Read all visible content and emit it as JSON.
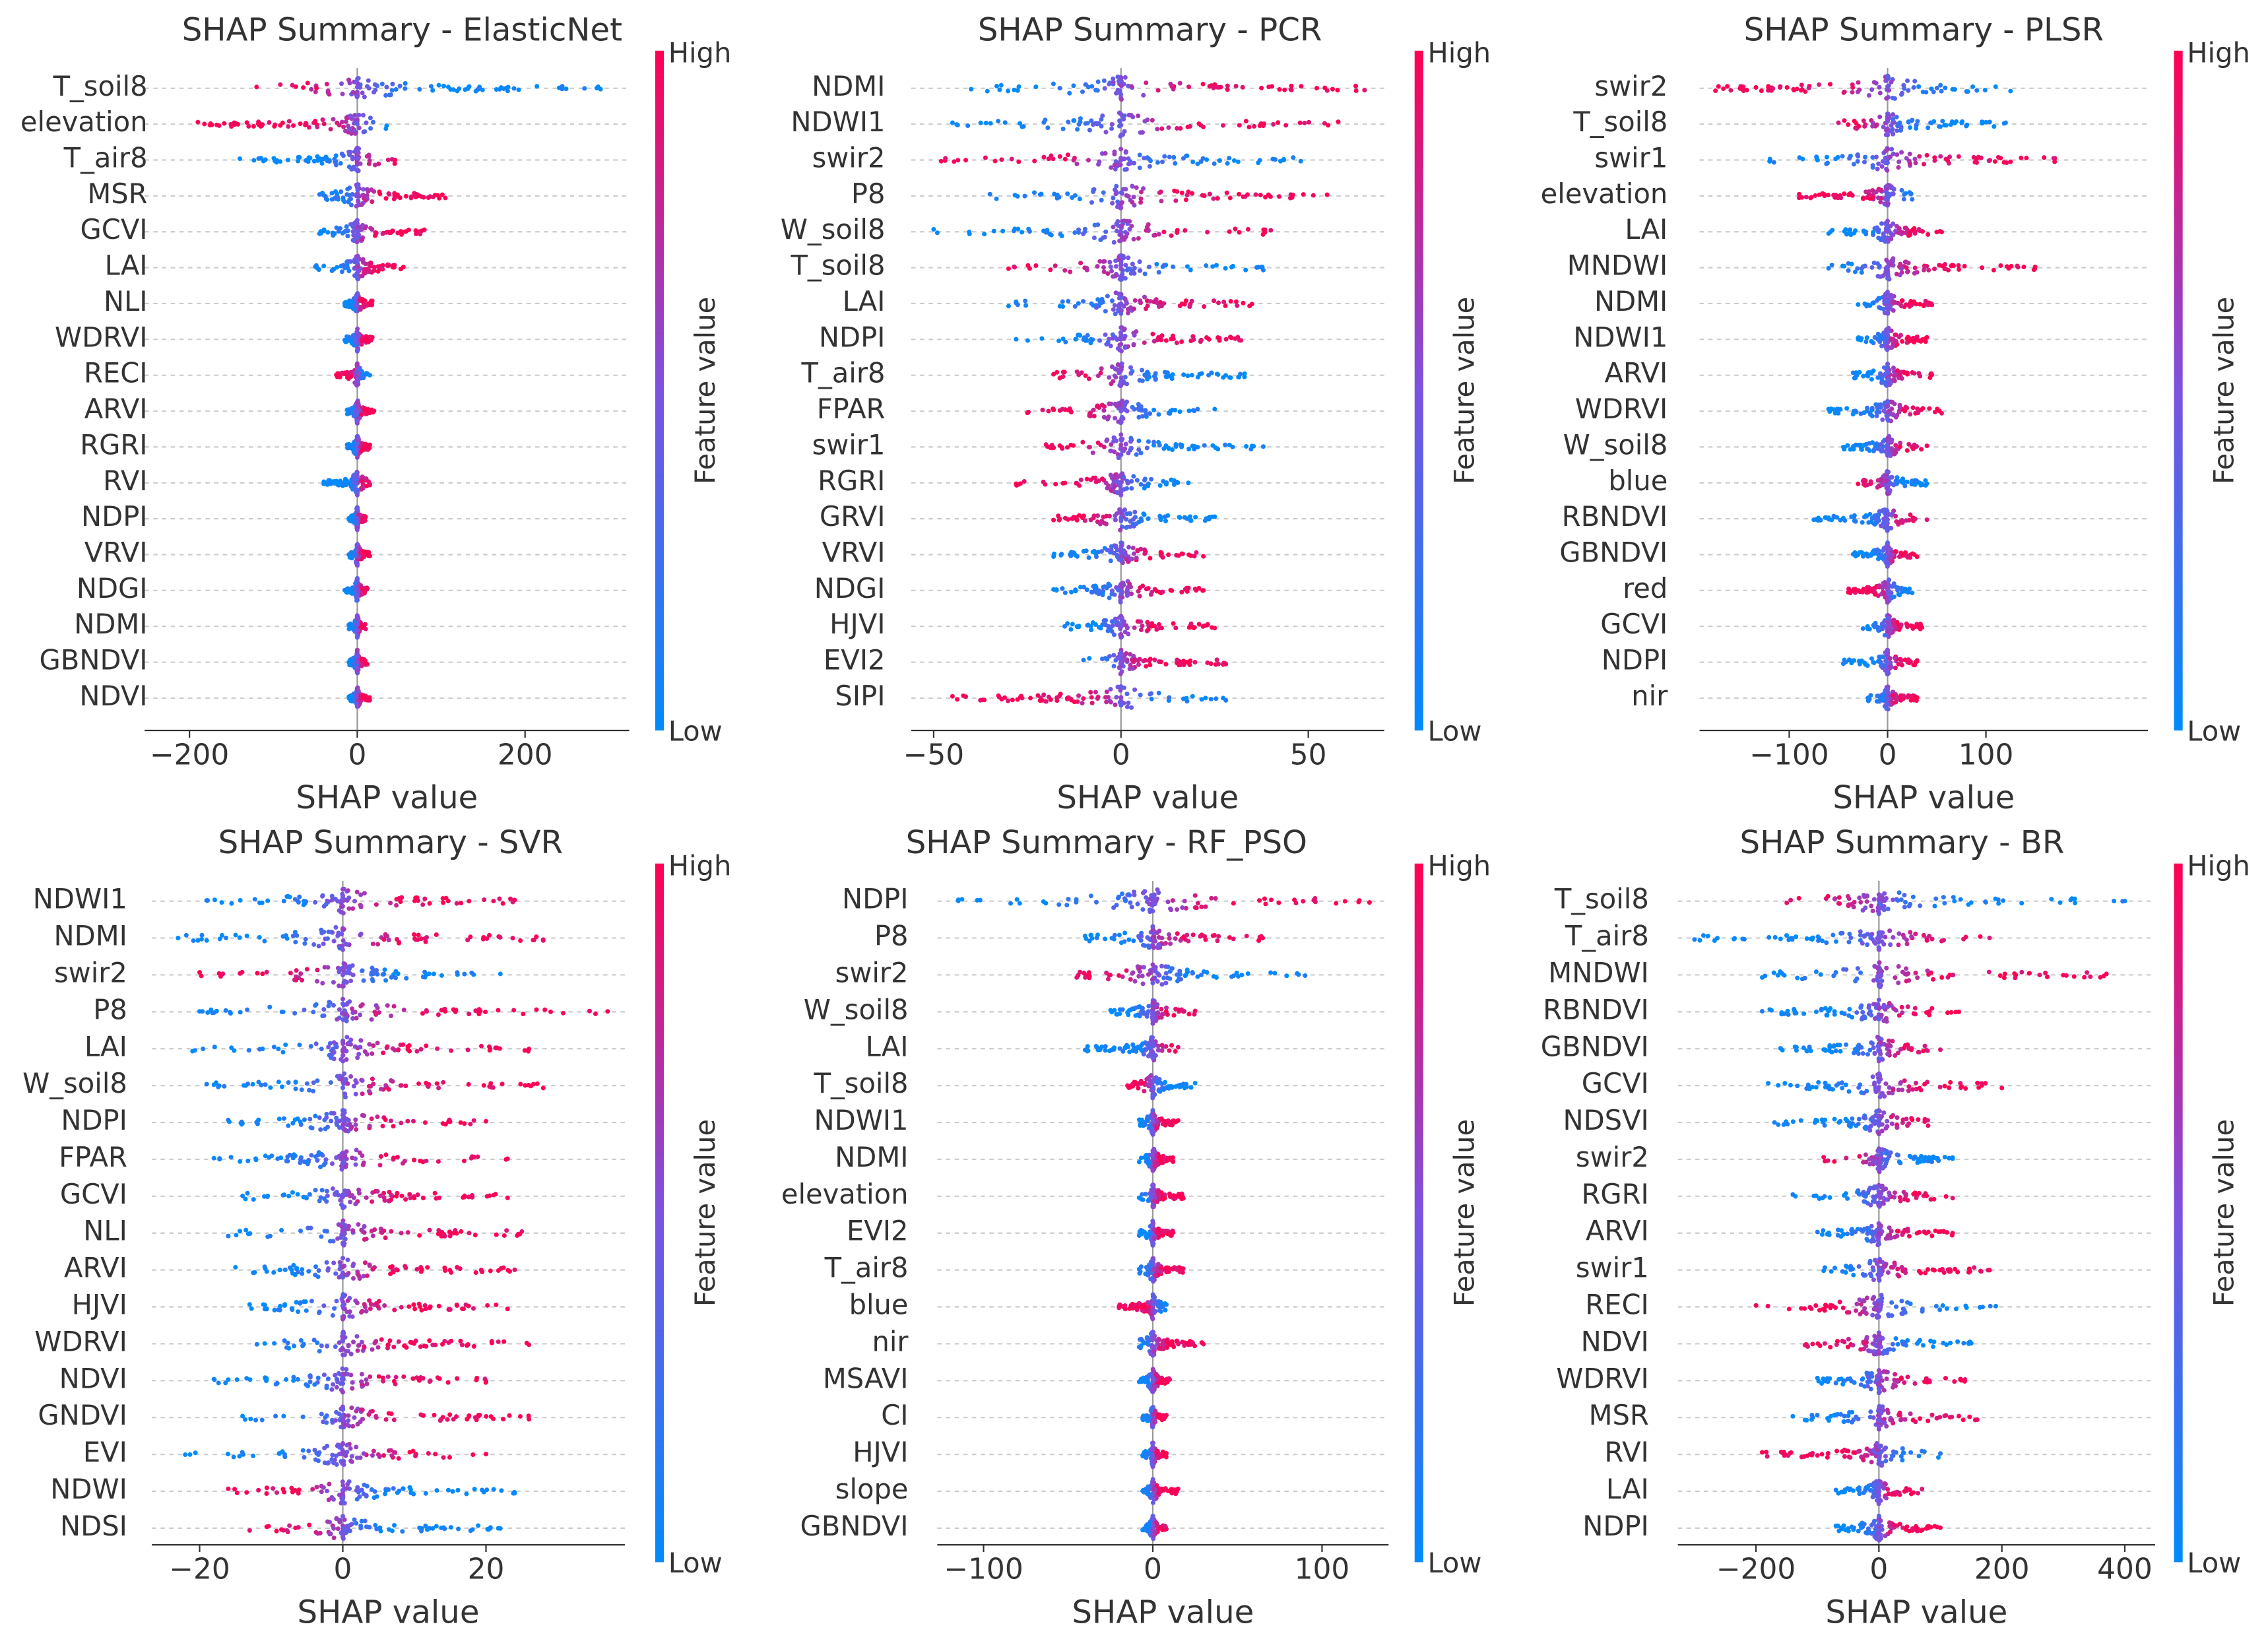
{
  "chart_data": [
    {
      "type": "scatter",
      "title": "SHAP Summary - ElasticNet",
      "xlabel": "SHAP value",
      "xticks": [
        -200,
        0,
        200
      ],
      "xlim": [
        -255,
        320
      ],
      "features": [
        [
          "T_soil8",
          -120,
          290,
          -1
        ],
        [
          "elevation",
          -190,
          35,
          -1
        ],
        [
          "T_air8",
          -140,
          45,
          1
        ],
        [
          "MSR",
          -45,
          105,
          1
        ],
        [
          "GCVI",
          -45,
          80,
          1
        ],
        [
          "LAI",
          -50,
          55,
          1
        ],
        [
          "NLI",
          -15,
          18,
          1
        ],
        [
          "WDRVI",
          -15,
          18,
          1
        ],
        [
          "RECI",
          -25,
          15,
          -1
        ],
        [
          "ARVI",
          -12,
          20,
          1
        ],
        [
          "RGRI",
          -12,
          15,
          1
        ],
        [
          "RVI",
          -40,
          15,
          1
        ],
        [
          "NDPI",
          -10,
          10,
          1
        ],
        [
          "VRVI",
          -10,
          15,
          1
        ],
        [
          "NDGI",
          -15,
          12,
          1
        ],
        [
          "NDMI",
          -10,
          10,
          1
        ],
        [
          "GBNDVI",
          -10,
          12,
          1
        ],
        [
          "NDVI",
          -10,
          15,
          1
        ]
      ]
    },
    {
      "type": "scatter",
      "title": "SHAP Summary - PCR",
      "xlabel": "SHAP value",
      "xticks": [
        -50,
        0,
        50
      ],
      "xlim": [
        -56,
        70
      ],
      "features": [
        [
          "NDMI",
          -40,
          65,
          1
        ],
        [
          "NDWI1",
          -45,
          58,
          1
        ],
        [
          "swir2",
          -48,
          48,
          -1
        ],
        [
          "P8",
          -35,
          55,
          1
        ],
        [
          "W_soil8",
          -50,
          40,
          1
        ],
        [
          "T_soil8",
          -30,
          38,
          -1
        ],
        [
          "LAI",
          -30,
          35,
          1
        ],
        [
          "NDPI",
          -28,
          32,
          1
        ],
        [
          "T_air8",
          -18,
          33,
          -1
        ],
        [
          "FPAR",
          -25,
          25,
          -1
        ],
        [
          "swir1",
          -20,
          38,
          -1
        ],
        [
          "RGRI",
          -28,
          18,
          -1
        ],
        [
          "GRVI",
          -18,
          25,
          -1
        ],
        [
          "VRVI",
          -18,
          22,
          1
        ],
        [
          "NDGI",
          -18,
          22,
          1
        ],
        [
          "HJVI",
          -15,
          25,
          1
        ],
        [
          "EVI2",
          -10,
          28,
          1
        ],
        [
          "SIPI",
          -45,
          28,
          -1
        ]
      ]
    },
    {
      "type": "scatter",
      "title": "SHAP Summary - PLSR",
      "xlabel": "SHAP value",
      "xticks": [
        -100,
        0,
        100
      ],
      "xlim": [
        -190,
        265
      ],
      "features": [
        [
          "swir2",
          -175,
          125,
          -1
        ],
        [
          "T_soil8",
          -50,
          120,
          -1
        ],
        [
          "swir1",
          -120,
          170,
          1
        ],
        [
          "elevation",
          -90,
          25,
          -1
        ],
        [
          "LAI",
          -60,
          55,
          1
        ],
        [
          "MNDWI",
          -60,
          150,
          1
        ],
        [
          "NDMI",
          -30,
          45,
          1
        ],
        [
          "NDWI1",
          -30,
          40,
          1
        ],
        [
          "ARVI",
          -35,
          45,
          1
        ],
        [
          "WDRVI",
          -60,
          55,
          1
        ],
        [
          "W_soil8",
          -45,
          40,
          1
        ],
        [
          "blue",
          -30,
          40,
          -1
        ],
        [
          "RBNDVI",
          -75,
          40,
          1
        ],
        [
          "GBNDVI",
          -35,
          30,
          1
        ],
        [
          "red",
          -40,
          25,
          -1
        ],
        [
          "GCVI",
          -25,
          35,
          1
        ],
        [
          "NDPI",
          -45,
          30,
          1
        ],
        [
          "nir",
          -20,
          30,
          1
        ]
      ]
    },
    {
      "type": "scatter",
      "title": "SHAP Summary - SVR",
      "xlabel": "SHAP value",
      "xticks": [
        -20,
        0,
        20
      ],
      "xlim": [
        -26,
        39
      ],
      "features": [
        [
          "NDWI1",
          -19,
          24,
          1
        ],
        [
          "NDMI",
          -23,
          28,
          1
        ],
        [
          "swir2",
          -20,
          22,
          -1
        ],
        [
          "P8",
          -20,
          37,
          1
        ],
        [
          "LAI",
          -21,
          26,
          1
        ],
        [
          "W_soil8",
          -19,
          28,
          1
        ],
        [
          "NDPI",
          -16,
          20,
          1
        ],
        [
          "FPAR",
          -18,
          23,
          1
        ],
        [
          "GCVI",
          -14,
          23,
          1
        ],
        [
          "NLI",
          -16,
          25,
          1
        ],
        [
          "ARVI",
          -15,
          24,
          1
        ],
        [
          "HJVI",
          -13,
          23,
          1
        ],
        [
          "WDRVI",
          -12,
          26,
          1
        ],
        [
          "NDVI",
          -18,
          20,
          1
        ],
        [
          "GNDVI",
          -14,
          26,
          1
        ],
        [
          "EVI",
          -22,
          20,
          1
        ],
        [
          "NDWI",
          -16,
          24,
          -1
        ],
        [
          "NDSI",
          -13,
          22,
          -1
        ]
      ]
    },
    {
      "type": "scatter",
      "title": "SHAP Summary - RF_PSO",
      "xlabel": "SHAP value",
      "xticks": [
        -100,
        0,
        100
      ],
      "xlim": [
        -128,
        138
      ],
      "features": [
        [
          "NDPI",
          -115,
          128,
          1
        ],
        [
          "P8",
          -40,
          65,
          1
        ],
        [
          "swir2",
          -45,
          90,
          -1
        ],
        [
          "W_soil8",
          -25,
          25,
          1
        ],
        [
          "LAI",
          -40,
          15,
          1
        ],
        [
          "T_soil8",
          -15,
          25,
          -1
        ],
        [
          "NDWI1",
          -8,
          15,
          1
        ],
        [
          "NDMI",
          -8,
          12,
          1
        ],
        [
          "elevation",
          -8,
          18,
          1
        ],
        [
          "EVI2",
          -8,
          12,
          1
        ],
        [
          "T_air8",
          -8,
          18,
          1
        ],
        [
          "blue",
          -20,
          8,
          -1
        ],
        [
          "nir",
          -8,
          30,
          1
        ],
        [
          "MSAVI",
          -8,
          10,
          1
        ],
        [
          "CI",
          -6,
          8,
          1
        ],
        [
          "HJVI",
          -6,
          8,
          1
        ],
        [
          "slope",
          -6,
          15,
          1
        ],
        [
          "GBNDVI",
          -6,
          8,
          1
        ]
      ]
    },
    {
      "type": "scatter",
      "title": "SHAP Summary - BR",
      "xlabel": "SHAP value",
      "xticks": [
        -200,
        0,
        200,
        400
      ],
      "xlim": [
        -325,
        450
      ],
      "features": [
        [
          "T_soil8",
          -150,
          400,
          -1
        ],
        [
          "T_air8",
          -300,
          180,
          1
        ],
        [
          "MNDWI",
          -190,
          370,
          1
        ],
        [
          "RBNDVI",
          -190,
          130,
          1
        ],
        [
          "GBNDVI",
          -160,
          100,
          1
        ],
        [
          "GCVI",
          -180,
          200,
          1
        ],
        [
          "NDSVI",
          -170,
          80,
          1
        ],
        [
          "swir2",
          -90,
          120,
          -1
        ],
        [
          "RGRI",
          -140,
          120,
          1
        ],
        [
          "ARVI",
          -100,
          120,
          1
        ],
        [
          "swir1",
          -90,
          180,
          1
        ],
        [
          "RECI",
          -200,
          190,
          -1
        ],
        [
          "NDVI",
          -120,
          150,
          -1
        ],
        [
          "WDRVI",
          -100,
          140,
          1
        ],
        [
          "MSR",
          -140,
          160,
          1
        ],
        [
          "RVI",
          -190,
          100,
          -1
        ],
        [
          "LAI",
          -70,
          70,
          1
        ],
        [
          "NDPI",
          -70,
          100,
          1
        ]
      ]
    }
  ],
  "colorbar": {
    "high": "High",
    "low": "Low",
    "label": "Feature value"
  },
  "colors": {
    "high": "#ff0052",
    "low": "#008bfb"
  }
}
